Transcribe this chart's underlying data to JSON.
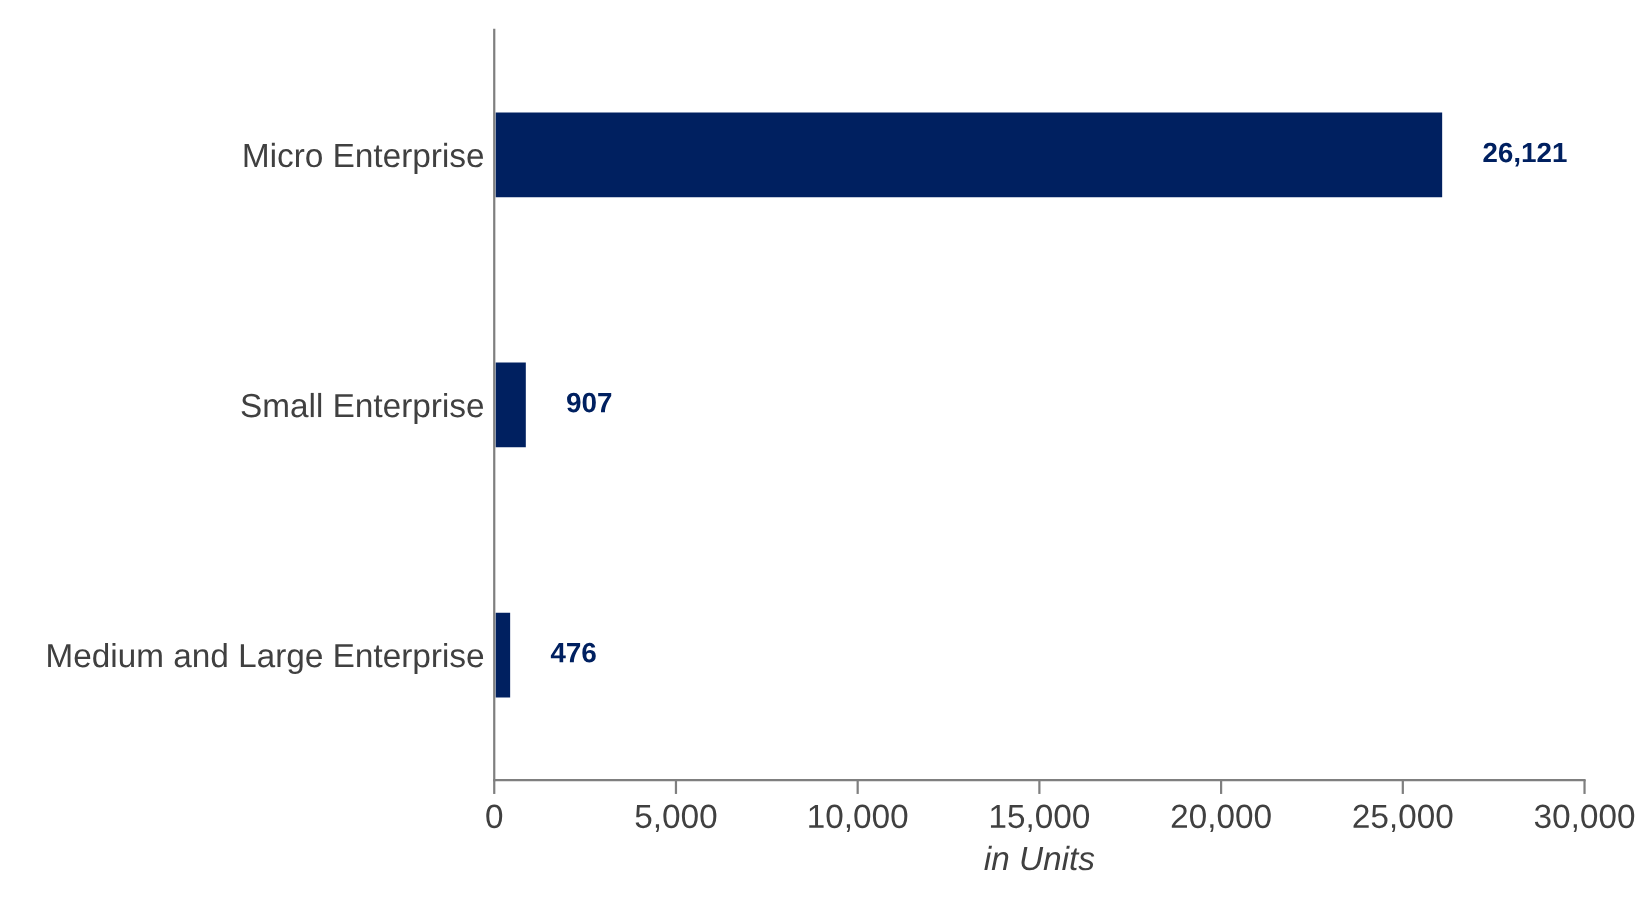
{
  "chart_data": {
    "type": "bar",
    "orientation": "horizontal",
    "categories": [
      "Micro Enterprise",
      "Small Enterprise",
      "Medium and Large Enterprise"
    ],
    "values": [
      26121,
      907,
      476
    ],
    "value_labels": [
      "26,121",
      "907",
      "476"
    ],
    "color": "#002060",
    "xlabel": "in Units",
    "xlim": [
      0,
      30000
    ],
    "xticks": [
      0,
      {
        "value": 5000,
        "label": "5,000"
      },
      {
        "value": 10000,
        "label": "10,000"
      },
      {
        "value": 15000,
        "label": "15,000"
      },
      {
        "value": 20000,
        "label": "20,000"
      },
      {
        "value": 25000,
        "label": "25,000"
      },
      {
        "value": 30000,
        "label": "30,000"
      }
    ],
    "grid": false,
    "legend": false
  }
}
